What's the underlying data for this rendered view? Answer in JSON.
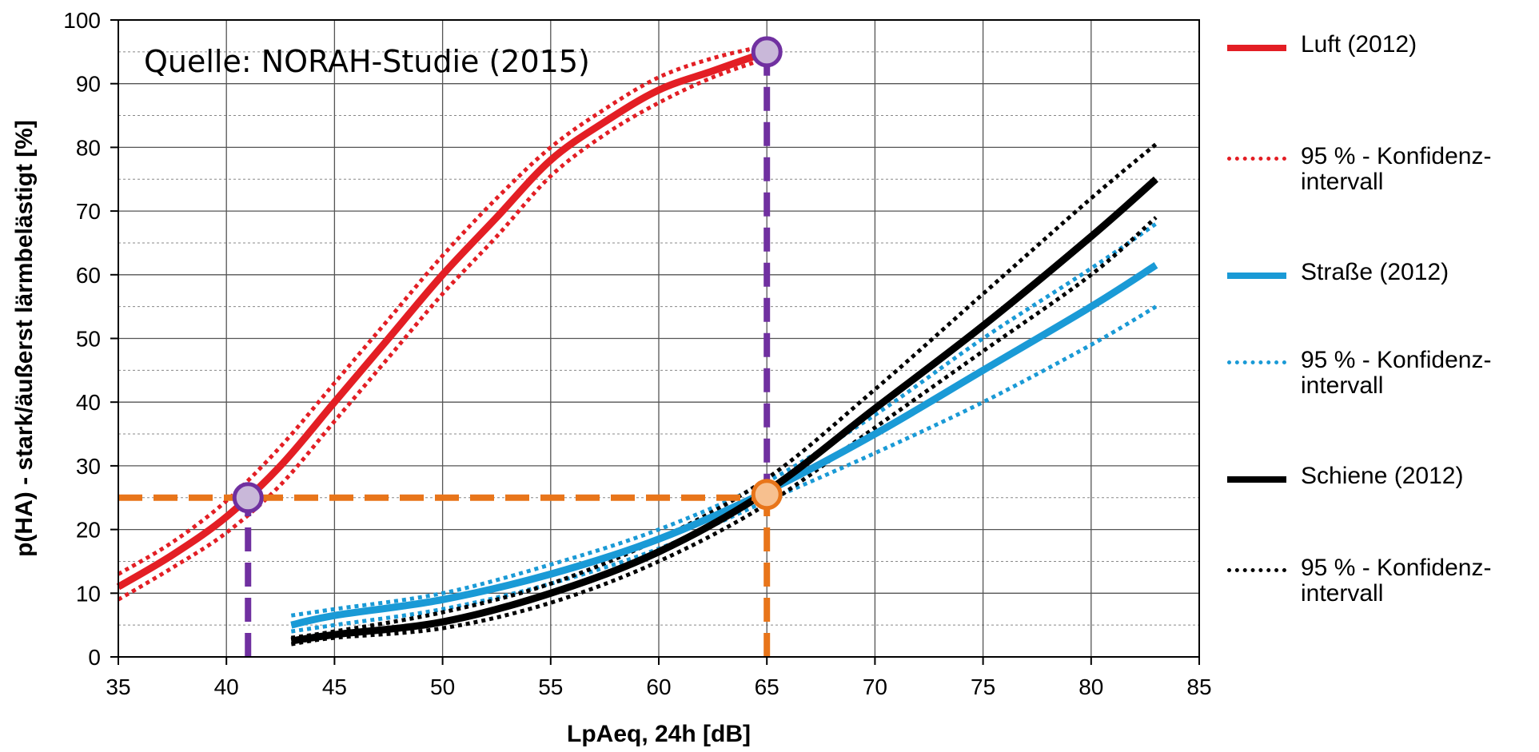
{
  "chart_data": {
    "type": "line",
    "source_note": "Quelle: NORAH-Studie (2015)",
    "xlabel": "LpAeq, 24h [dB]",
    "ylabel": "p(HA) - stark/äußerst lärmbelästigt [%]",
    "xlim": [
      35,
      85
    ],
    "ylim": [
      0,
      100
    ],
    "x_ticks": [
      35,
      40,
      45,
      50,
      55,
      60,
      65,
      70,
      75,
      80,
      85
    ],
    "y_ticks": [
      0,
      10,
      20,
      30,
      40,
      50,
      60,
      70,
      80,
      90,
      100
    ],
    "grid": "major and minor horizontal, major vertical",
    "legend_position": "right",
    "series": [
      {
        "name": "Luft (2012)",
        "style": "solid",
        "color": "#e31e24",
        "x": [
          35,
          37.5,
          40,
          42.5,
          45,
          47.5,
          50,
          52.5,
          55,
          57.5,
          60,
          62.5,
          65
        ],
        "y": [
          11,
          16,
          22,
          30,
          40,
          50,
          60,
          69,
          78,
          84,
          89,
          92,
          95
        ]
      },
      {
        "name": "95 % - Konfidenz-\nintervall",
        "style": "dotted",
        "color": "#e31e24",
        "x": [
          35,
          37.5,
          40,
          42.5,
          45,
          47.5,
          50,
          52.5,
          55,
          57.5,
          60,
          62.5,
          65
        ],
        "y": [
          13,
          18,
          24.5,
          33,
          43,
          53,
          63,
          72,
          80,
          86,
          91,
          94,
          96
        ]
      },
      {
        "name": "",
        "style": "dotted",
        "color": "#e31e24",
        "x": [
          35,
          37.5,
          40,
          42.5,
          45,
          47.5,
          50,
          52.5,
          55,
          57.5,
          60,
          62.5,
          65
        ],
        "y": [
          9,
          14,
          19.5,
          27,
          37,
          47,
          57,
          66,
          75.5,
          82,
          87,
          91,
          94
        ]
      },
      {
        "name": "Straße (2012)",
        "style": "solid",
        "color": "#1a9ad6",
        "x": [
          43,
          45,
          50,
          55,
          60,
          65,
          70,
          75,
          80,
          83
        ],
        "y": [
          5,
          6.5,
          9,
          13,
          18.5,
          26,
          35,
          45,
          55,
          61.5
        ]
      },
      {
        "name": "95 % - Konfidenz-\nintervall",
        "style": "dotted",
        "color": "#1a9ad6",
        "x": [
          43,
          45,
          50,
          55,
          60,
          65,
          70,
          75,
          80,
          83
        ],
        "y": [
          6.5,
          7.5,
          10,
          14.5,
          20,
          27.5,
          38,
          50,
          61,
          68
        ]
      },
      {
        "name": "",
        "style": "dotted",
        "color": "#1a9ad6",
        "x": [
          43,
          45,
          50,
          55,
          60,
          65,
          70,
          75,
          80,
          83
        ],
        "y": [
          4,
          5,
          7.5,
          11.5,
          17,
          24.5,
          32,
          40,
          49,
          55
        ]
      },
      {
        "name": "Schiene (2012)",
        "style": "solid",
        "color": "#000000",
        "x": [
          43,
          45,
          50,
          55,
          60,
          65,
          70,
          75,
          80,
          83
        ],
        "y": [
          2.5,
          3.5,
          5.5,
          10,
          16.5,
          26,
          39,
          52,
          66,
          75
        ]
      },
      {
        "name": "95 % - Konfidenz-\nintervall",
        "style": "dotted",
        "color": "#000000",
        "x": [
          43,
          45,
          50,
          55,
          60,
          65,
          70,
          75,
          80,
          83
        ],
        "y": [
          3,
          4,
          7,
          11.5,
          18.5,
          28,
          42,
          57,
          72,
          80.5
        ]
      },
      {
        "name": "",
        "style": "dotted",
        "color": "#000000",
        "x": [
          43,
          45,
          50,
          55,
          60,
          65,
          70,
          75,
          80,
          83
        ],
        "y": [
          2,
          3,
          4.5,
          8.5,
          15,
          24,
          36,
          48,
          60,
          69
        ]
      }
    ],
    "reference_lines": [
      {
        "axis": "y",
        "value": 25,
        "from": 35,
        "to": 65,
        "color": "#e8751a"
      },
      {
        "axis": "x",
        "value": 41,
        "from": 0,
        "to": 25,
        "color": "#7030a0"
      },
      {
        "axis": "x",
        "value": 65,
        "from": 25,
        "to": 95,
        "color": "#7030a0"
      },
      {
        "axis": "x",
        "value": 65,
        "from": 0,
        "to": 25,
        "color": "#e8751a"
      }
    ],
    "markers": [
      {
        "x": 41,
        "y": 25,
        "fill": "#c9b8d9",
        "stroke": "#7030a0"
      },
      {
        "x": 65,
        "y": 95,
        "fill": "#c9b8d9",
        "stroke": "#7030a0"
      },
      {
        "x": 65,
        "y": 25.5,
        "fill": "#f7c08f",
        "stroke": "#e8751a"
      }
    ]
  },
  "legend": [
    {
      "label": "Luft (2012)",
      "color": "#e31e24",
      "style": "solid"
    },
    {
      "label": "95 % - Konfidenz-\nintervall",
      "color": "#e31e24",
      "style": "dotted"
    },
    {
      "label": "Straße (2012)",
      "color": "#1a9ad6",
      "style": "solid"
    },
    {
      "label": "95 % - Konfidenz-\nintervall",
      "color": "#1a9ad6",
      "style": "dotted"
    },
    {
      "label": "Schiene (2012)",
      "color": "#000000",
      "style": "solid"
    },
    {
      "label": "95 % - Konfidenz-\nintervall",
      "color": "#000000",
      "style": "dotted"
    }
  ]
}
